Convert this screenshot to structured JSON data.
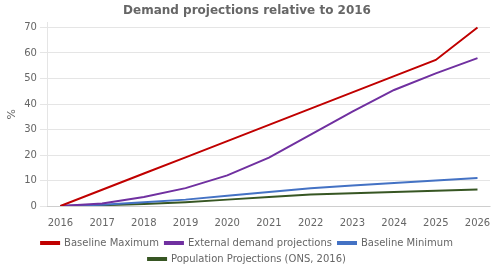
{
  "chart_data": {
    "type": "line",
    "title": "Demand projections relative to 2016",
    "ylabel": "%",
    "x": [
      2016,
      2017,
      2018,
      2019,
      2020,
      2021,
      2022,
      2023,
      2024,
      2025,
      2026
    ],
    "series": [
      {
        "name": "Baseline Maximum",
        "color": "#C00000",
        "values": [
          0,
          6.36,
          12.73,
          19.09,
          25.45,
          31.82,
          38.18,
          44.55,
          50.91,
          57.27,
          70.0
        ]
      },
      {
        "name": "External demand projections",
        "color": "#7030A0",
        "values": [
          0,
          1.0,
          3.5,
          7.0,
          12.0,
          19.0,
          28.0,
          37.0,
          45.5,
          52.0,
          58.0
        ]
      },
      {
        "name": "Baseline Minimum",
        "color": "#4472C4",
        "values": [
          0,
          0.5,
          1.5,
          2.5,
          4.0,
          5.5,
          7.0,
          8.0,
          9.0,
          10.0,
          11.0
        ]
      },
      {
        "name": "Population Projections (ONS, 2016)",
        "color": "#375623",
        "values": [
          0,
          0.3,
          0.8,
          1.5,
          2.5,
          3.5,
          4.5,
          5.0,
          5.5,
          6.0,
          6.5
        ]
      }
    ],
    "xlim": [
      2015.7,
      2026.3
    ],
    "xticks": [
      2016,
      2017,
      2018,
      2019,
      2020,
      2021,
      2022,
      2023,
      2024,
      2025,
      2026
    ],
    "ylim": [
      0,
      72
    ],
    "yticks": [
      0,
      10,
      20,
      30,
      40,
      50,
      60,
      70
    ],
    "grid": "y",
    "legend": "bottom"
  }
}
